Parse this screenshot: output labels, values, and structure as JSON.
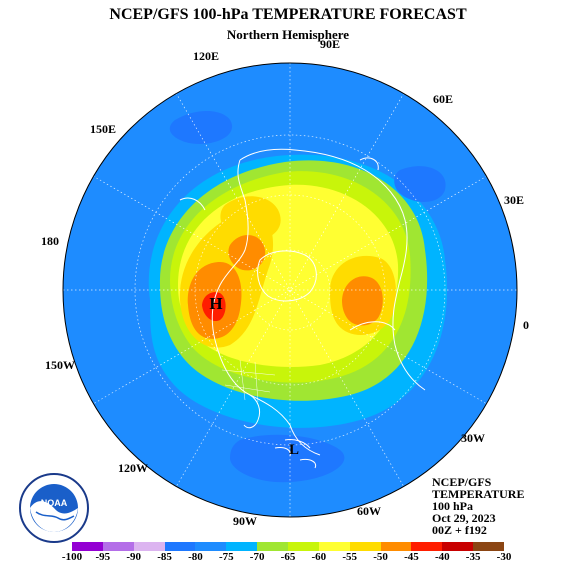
{
  "header": {
    "title": "NCEP/GFS 100-hPa TEMPERATURE FORECAST",
    "subtitle": "Northern Hemisphere"
  },
  "map": {
    "projection": "polar-stereographic",
    "longitude_labels": [
      "90E",
      "60E",
      "30E",
      "0",
      "30W",
      "60W",
      "90W",
      "120W",
      "150W",
      "180",
      "150E",
      "120E"
    ],
    "high_marker": "H",
    "low_marker": "L",
    "ocean_color": "#1e90ff",
    "coastline_color": "#ffffff"
  },
  "info_box": {
    "line1": "NCEP/GFS",
    "line2": "TEMPERATURE",
    "line3": "100 hPa",
    "line4": "Oct 29, 2023",
    "line5": "00Z + f192"
  },
  "colorbar": {
    "labels": [
      "-100",
      "-95",
      "-90",
      "-85",
      "-80",
      "-75",
      "-70",
      "-65",
      "-60",
      "-55",
      "-50",
      "-45",
      "-40",
      "-35",
      "-30"
    ],
    "colors": [
      "#9400d3",
      "#b46ee8",
      "#dcb4f0",
      "#1e78ff",
      "#1e8cff",
      "#00b4ff",
      "#a0e632",
      "#c8f50a",
      "#ffff32",
      "#ffdc00",
      "#ff8c00",
      "#ff1e00",
      "#c80000",
      "#8b4513"
    ]
  },
  "logo": {
    "text": "NOAA",
    "ring_text": "NATIONAL OCEANIC AND ATMOSPHERIC ADMINISTRATION",
    "bottom_text": "U.S. DEPARTMENT OF COMMERCE"
  }
}
